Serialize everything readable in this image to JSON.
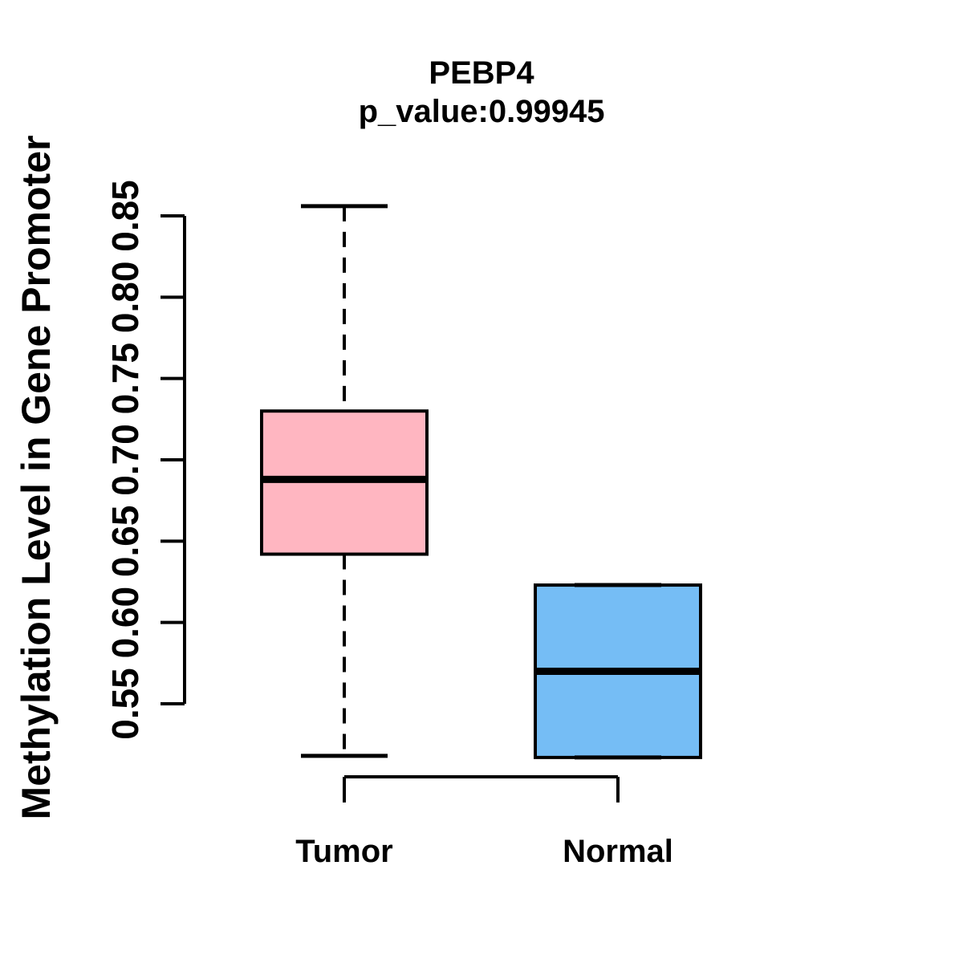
{
  "chart_data": {
    "type": "boxplot",
    "title": "PEBP4",
    "subtitle": "p_value:0.99945",
    "p_value": 0.99945,
    "ylabel": "Methylation Level in Gene Promoter",
    "xlabel": "",
    "ylim": [
      0.55,
      0.85
    ],
    "yticks": [
      {
        "value": 0.55,
        "label": "0.55"
      },
      {
        "value": 0.6,
        "label": "0.60"
      },
      {
        "value": 0.65,
        "label": "0.65"
      },
      {
        "value": 0.7,
        "label": "0.70"
      },
      {
        "value": 0.75,
        "label": "0.75"
      },
      {
        "value": 0.8,
        "label": "0.80"
      },
      {
        "value": 0.85,
        "label": "0.85"
      }
    ],
    "categories": [
      "Tumor",
      "Normal"
    ],
    "series": [
      {
        "name": "Tumor",
        "fill": "#FFB6C1",
        "stats": {
          "min": 0.518,
          "q1": 0.642,
          "median": 0.688,
          "q3": 0.73,
          "max": 0.856
        }
      },
      {
        "name": "Normal",
        "fill": "#75BDF5",
        "stats": {
          "min": 0.517,
          "q1": 0.517,
          "median": 0.57,
          "q3": 0.623,
          "max": 0.623
        }
      }
    ],
    "whisker_linetype": "dashed",
    "grid": false,
    "legend": "none",
    "stroke_color": "#000000",
    "background": "#FFFFFF"
  }
}
